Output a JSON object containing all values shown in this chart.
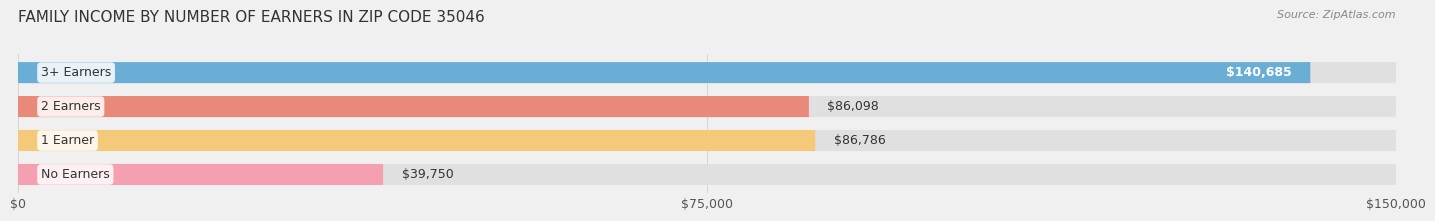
{
  "title": "FAMILY INCOME BY NUMBER OF EARNERS IN ZIP CODE 35046",
  "source": "Source: ZipAtlas.com",
  "categories": [
    "No Earners",
    "1 Earner",
    "2 Earners",
    "3+ Earners"
  ],
  "values": [
    39750,
    86786,
    86098,
    140685
  ],
  "bar_colors": [
    "#f4a0b0",
    "#f5c97a",
    "#e8897a",
    "#6aaed6"
  ],
  "label_colors": [
    "#555555",
    "#555555",
    "#555555",
    "#ffffff"
  ],
  "value_labels": [
    "$39,750",
    "$86,786",
    "$86,098",
    "$140,685"
  ],
  "xlim": [
    0,
    150000
  ],
  "xticks": [
    0,
    75000,
    150000
  ],
  "xticklabels": [
    "$0",
    "$75,000",
    "$150,000"
  ],
  "background_color": "#f0f0f0",
  "title_fontsize": 11,
  "source_fontsize": 8,
  "label_fontsize": 9,
  "value_fontsize": 9,
  "tick_fontsize": 9
}
